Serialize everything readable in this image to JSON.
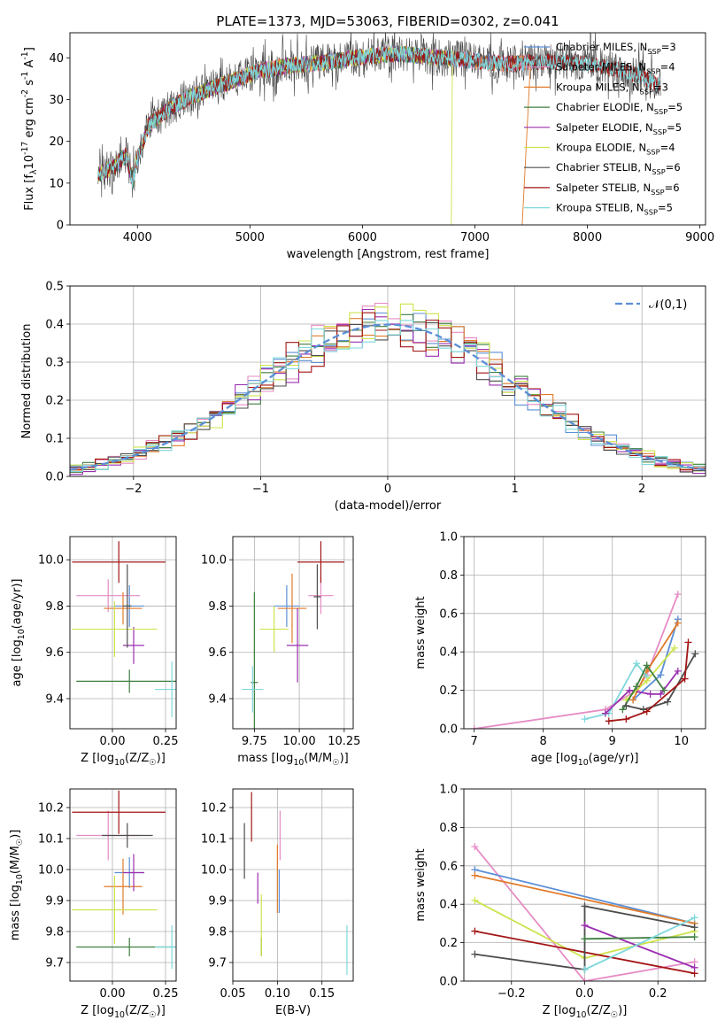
{
  "colors": {
    "Chabrier MILES": "#5b8fd6",
    "Salpeter MILES": "#e68cc4",
    "Kroupa MILES": "#e07b2a",
    "Chabrier ELODIE": "#3f7f3f",
    "Salpeter ELODIE": "#9b2fb0",
    "Kroupa ELODIE": "#cde34c",
    "Chabrier STELIB": "#4d4d4d",
    "Salpeter STELIB": "#a31515",
    "Kroupa STELIB": "#7fd8dc",
    "normal_curve": "#5b8fd6"
  },
  "chart_data": [
    {
      "id": "spectrum",
      "type": "line",
      "title": "PLATE=1373, MJD=53063, FIBERID=0302, z=0.041",
      "xlabel": "wavelength [Angstrom, rest frame]",
      "ylabel": "Flux [f$_\\lambda$10$^{-17}$ erg cm$^{-2}$ s$^{-1}$ A$^{-1}$]",
      "xlim": [
        3400,
        9050
      ],
      "ylim": [
        0,
        46
      ],
      "xticks": [
        4000,
        5000,
        6000,
        7000,
        8000,
        9000
      ],
      "yticks": [
        0,
        10,
        20,
        30,
        40
      ],
      "grid": false,
      "legend_loc": "right",
      "continuum": [
        [
          3650,
          12
        ],
        [
          3800,
          14
        ],
        [
          3900,
          17
        ],
        [
          3960,
          10
        ],
        [
          4000,
          16
        ],
        [
          4100,
          24
        ],
        [
          4300,
          28
        ],
        [
          4500,
          31
        ],
        [
          4700,
          33
        ],
        [
          4900,
          35
        ],
        [
          5100,
          37
        ],
        [
          5300,
          38
        ],
        [
          5500,
          38.5
        ],
        [
          5700,
          39
        ],
        [
          5900,
          40
        ],
        [
          6100,
          40.5
        ],
        [
          6300,
          41
        ],
        [
          6500,
          40.5
        ],
        [
          6700,
          40
        ],
        [
          6900,
          39.5
        ],
        [
          7100,
          39
        ],
        [
          7300,
          38.5
        ],
        [
          7500,
          39
        ],
        [
          7700,
          39
        ],
        [
          7900,
          39
        ],
        [
          8100,
          38
        ],
        [
          8300,
          37
        ],
        [
          8500,
          35.5
        ],
        [
          8650,
          33
        ]
      ],
      "series": [
        {
          "name": "Chabrier MILES",
          "label": "Chabrier MILES, N$_{SSP}$=3",
          "x_range": [
            3650,
            7500
          ]
        },
        {
          "name": "Salpeter MILES",
          "label": "Salpeter MILES, N$_{SSP}$=4",
          "x_range": [
            3650,
            7500
          ]
        },
        {
          "name": "Kroupa MILES",
          "label": "Kroupa MILES, N$_{SSP}$=3",
          "x_range": [
            3650,
            7500
          ],
          "drop_at": 7420
        },
        {
          "name": "Chabrier ELODIE",
          "label": "Chabrier ELODIE, N$_{SSP}$=5",
          "x_range": [
            3650,
            6800
          ]
        },
        {
          "name": "Salpeter ELODIE",
          "label": "Salpeter ELODIE, N$_{SSP}$=5",
          "x_range": [
            3650,
            6800
          ]
        },
        {
          "name": "Kroupa ELODIE",
          "label": "Kroupa ELODIE, N$_{SSP}$=4",
          "x_range": [
            3650,
            6800
          ],
          "drop_at": 6790
        },
        {
          "name": "Chabrier STELIB",
          "label": "Chabrier STELIB, N$_{SSP}$=6",
          "x_range": [
            3650,
            8650
          ]
        },
        {
          "name": "Salpeter STELIB",
          "label": "Salpeter STELIB, N$_{SSP}$=6",
          "x_range": [
            3650,
            8650
          ]
        },
        {
          "name": "Kroupa STELIB",
          "label": "Kroupa STELIB, N$_{SSP}$=5",
          "x_range": [
            3650,
            8650
          ]
        }
      ]
    },
    {
      "id": "residuals",
      "type": "histogram",
      "xlabel": "(data-model)/error",
      "ylabel": "Normed distribution",
      "xlim": [
        -2.5,
        2.5
      ],
      "ylim": [
        0,
        0.5
      ],
      "xticks": [
        -2,
        -1,
        0,
        1,
        2
      ],
      "yticks": [
        0.0,
        0.1,
        0.2,
        0.3,
        0.4,
        0.5
      ],
      "grid": true,
      "legend_loc": "top-right",
      "bin_width": 0.1,
      "normal_label": "$\\mathcal{N}(0,1)$",
      "series": [
        "Chabrier MILES",
        "Salpeter MILES",
        "Kroupa MILES",
        "Chabrier ELODIE",
        "Salpeter ELODIE",
        "Kroupa ELODIE",
        "Chabrier STELIB",
        "Salpeter STELIB",
        "Kroupa STELIB"
      ]
    },
    {
      "id": "z_age",
      "type": "errorbar",
      "xlabel": "Z [log$_{10}$($Z/Z_\\odot$)]",
      "ylabel": "age  [log$_{10}$($age/yr$)]",
      "xlim": [
        -0.2,
        0.3
      ],
      "ylim": [
        9.27,
        10.1
      ],
      "xticks": [
        0.0,
        0.25
      ],
      "yticks": [
        9.4,
        9.6,
        9.8,
        10.0
      ],
      "grid": true,
      "points": [
        {
          "series": "Chabrier MILES",
          "x": 0.08,
          "y": 9.8,
          "xerr": 0.07,
          "yerr": 0.09
        },
        {
          "series": "Salpeter MILES",
          "x": -0.02,
          "y": 9.845,
          "xerr": 0.15,
          "yerr": 0.07
        },
        {
          "series": "Kroupa MILES",
          "x": 0.05,
          "y": 9.79,
          "xerr": 0.09,
          "yerr": 0.07
        },
        {
          "series": "Chabrier ELODIE",
          "x": 0.08,
          "y": 9.475,
          "xerr": 0.25,
          "yerr": 0.05
        },
        {
          "series": "Salpeter ELODIE",
          "x": 0.1,
          "y": 9.63,
          "xerr": 0.05,
          "yerr": 0.08
        },
        {
          "series": "Kroupa ELODIE",
          "x": 0.01,
          "y": 9.7,
          "xerr": 0.2,
          "yerr": 0.12
        },
        {
          "series": "Chabrier STELIB",
          "x": 0.07,
          "y": 9.8,
          "xerr": 0.02,
          "yerr": 0.18
        },
        {
          "series": "Salpeter STELIB",
          "x": 0.03,
          "y": 9.99,
          "xerr": 0.22,
          "yerr": 0.09
        },
        {
          "series": "Kroupa STELIB",
          "x": 0.28,
          "y": 9.44,
          "xerr": 0.08,
          "yerr": 0.12
        }
      ]
    },
    {
      "id": "mass_age",
      "type": "errorbar",
      "xlabel": "mass [log$_{10}$($M/M_\\odot$)]",
      "ylabel": "",
      "xlim": [
        9.63,
        10.3
      ],
      "ylim": [
        9.27,
        10.1
      ],
      "xticks": [
        9.75,
        10.0,
        10.25
      ],
      "yticks": [
        9.4,
        9.6,
        9.8,
        10.0
      ],
      "grid": true,
      "points": [
        {
          "series": "Chabrier MILES",
          "x": 9.93,
          "y": 9.8,
          "xerr": 0.07,
          "yerr": 0.09
        },
        {
          "series": "Salpeter MILES",
          "x": 10.12,
          "y": 9.845,
          "xerr": 0.07,
          "yerr": 0.08
        },
        {
          "series": "Kroupa MILES",
          "x": 9.96,
          "y": 9.79,
          "xerr": 0.08,
          "yerr": 0.15
        },
        {
          "series": "Chabrier ELODIE",
          "x": 9.75,
          "y": 9.47,
          "xerr": 0.02,
          "yerr": 0.39
        },
        {
          "series": "Salpeter ELODIE",
          "x": 9.99,
          "y": 9.63,
          "xerr": 0.06,
          "yerr": 0.16
        },
        {
          "series": "Kroupa ELODIE",
          "x": 9.86,
          "y": 9.7,
          "xerr": 0.08,
          "yerr": 0.1
        },
        {
          "series": "Chabrier STELIB",
          "x": 10.1,
          "y": 9.84,
          "xerr": 0.02,
          "yerr": 0.14
        },
        {
          "series": "Salpeter STELIB",
          "x": 10.12,
          "y": 9.99,
          "xerr": 0.13,
          "yerr": 0.09
        },
        {
          "series": "Kroupa STELIB",
          "x": 9.74,
          "y": 9.44,
          "xerr": 0.06,
          "yerr": 0.1
        }
      ]
    },
    {
      "id": "age_weight",
      "type": "line",
      "xlabel": "age  [log$_{10}$($age/yr$)]",
      "ylabel": "mass weight",
      "xlim": [
        6.85,
        10.35
      ],
      "ylim": [
        0,
        1
      ],
      "xticks": [
        7,
        8,
        9,
        10
      ],
      "yticks": [
        0.0,
        0.2,
        0.4,
        0.6,
        0.8,
        1.0
      ],
      "grid": true,
      "series": [
        {
          "name": "Salpeter MILES",
          "x": [
            7.0,
            8.9,
            9.35,
            9.5,
            9.95
          ],
          "y": [
            0.0,
            0.1,
            0.2,
            0.28,
            0.7
          ]
        },
        {
          "name": "Chabrier MILES",
          "x": [
            9.3,
            9.7,
            9.95
          ],
          "y": [
            0.15,
            0.28,
            0.57
          ]
        },
        {
          "name": "Kroupa MILES",
          "x": [
            9.3,
            9.5,
            9.95
          ],
          "y": [
            0.15,
            0.3,
            0.55
          ]
        },
        {
          "name": "Kroupa STELIB",
          "x": [
            8.6,
            8.95,
            9.35,
            9.5
          ],
          "y": [
            0.05,
            0.08,
            0.34,
            0.27
          ]
        },
        {
          "name": "Salpeter ELODIE",
          "x": [
            8.9,
            9.25,
            9.55,
            9.7,
            9.95
          ],
          "y": [
            0.08,
            0.2,
            0.18,
            0.18,
            0.3
          ]
        },
        {
          "name": "Kroupa ELODIE",
          "x": [
            9.2,
            9.5,
            9.9
          ],
          "y": [
            0.15,
            0.25,
            0.42
          ]
        },
        {
          "name": "Chabrier ELODIE",
          "x": [
            9.15,
            9.35,
            9.5,
            9.75
          ],
          "y": [
            0.1,
            0.22,
            0.33,
            0.2
          ]
        },
        {
          "name": "Chabrier STELIB",
          "x": [
            9.2,
            9.45,
            9.8,
            10.2
          ],
          "y": [
            0.12,
            0.1,
            0.14,
            0.39
          ]
        },
        {
          "name": "Salpeter STELIB",
          "x": [
            8.95,
            9.2,
            9.5,
            10.05,
            10.1
          ],
          "y": [
            0.04,
            0.05,
            0.09,
            0.26,
            0.45
          ]
        }
      ]
    },
    {
      "id": "z_mass",
      "type": "errorbar",
      "xlabel": "Z [log$_{10}$($Z/Z_\\odot$)]",
      "ylabel": "mass [log$_{10}$($M/M_\\odot$)]",
      "xlim": [
        -0.2,
        0.3
      ],
      "ylim": [
        9.64,
        10.26
      ],
      "xticks": [
        0.0,
        0.25
      ],
      "yticks": [
        9.7,
        9.8,
        9.9,
        10.0,
        10.1,
        10.2
      ],
      "grid": true,
      "points": [
        {
          "series": "Chabrier MILES",
          "x": 0.08,
          "y": 9.99,
          "xerr": 0.07,
          "yerr": 0.05
        },
        {
          "series": "Salpeter MILES",
          "x": -0.02,
          "y": 10.11,
          "xerr": 0.15,
          "yerr": 0.08
        },
        {
          "series": "Kroupa MILES",
          "x": 0.05,
          "y": 9.945,
          "xerr": 0.09,
          "yerr": 0.09
        },
        {
          "series": "Chabrier ELODIE",
          "x": 0.08,
          "y": 9.75,
          "xerr": 0.25,
          "yerr": 0.03
        },
        {
          "series": "Salpeter ELODIE",
          "x": 0.1,
          "y": 9.99,
          "xerr": 0.05,
          "yerr": 0.06
        },
        {
          "series": "Kroupa ELODIE",
          "x": 0.01,
          "y": 9.87,
          "xerr": 0.2,
          "yerr": 0.11
        },
        {
          "series": "Chabrier STELIB",
          "x": 0.07,
          "y": 10.11,
          "xerr": 0.12,
          "yerr": 0.04
        },
        {
          "series": "Salpeter STELIB",
          "x": 0.03,
          "y": 10.185,
          "xerr": 0.22,
          "yerr": 0.07
        },
        {
          "series": "Kroupa STELIB",
          "x": 0.28,
          "y": 9.75,
          "xerr": 0.08,
          "yerr": 0.07
        }
      ]
    },
    {
      "id": "ebv_mass",
      "type": "errorbar",
      "xlabel": "E(B-V)",
      "ylabel": "",
      "xlim": [
        0.05,
        0.185
      ],
      "ylim": [
        9.64,
        10.26
      ],
      "xticks": [
        0.05,
        0.1,
        0.15
      ],
      "yticks": [
        9.7,
        9.8,
        9.9,
        10.0,
        10.1,
        10.2
      ],
      "grid": true,
      "points": [
        {
          "series": "Chabrier MILES",
          "x": 0.102,
          "y": 9.93,
          "xerr": 0,
          "yerr": 0.07
        },
        {
          "series": "Salpeter MILES",
          "x": 0.103,
          "y": 10.11,
          "xerr": 0,
          "yerr": 0.08
        },
        {
          "series": "Kroupa MILES",
          "x": 0.1,
          "y": 9.97,
          "xerr": 0,
          "yerr": 0.11
        },
        {
          "series": "Chabrier ELODIE",
          "x": 0.082,
          "y": 9.75,
          "xerr": 0,
          "yerr": 0.03
        },
        {
          "series": "Salpeter ELODIE",
          "x": 0.078,
          "y": 9.94,
          "xerr": 0,
          "yerr": 0.05
        },
        {
          "series": "Kroupa ELODIE",
          "x": 0.082,
          "y": 9.82,
          "xerr": 0,
          "yerr": 0.1
        },
        {
          "series": "Chabrier STELIB",
          "x": 0.063,
          "y": 10.06,
          "xerr": 0,
          "yerr": 0.09
        },
        {
          "series": "Salpeter STELIB",
          "x": 0.071,
          "y": 10.17,
          "xerr": 0,
          "yerr": 0.08
        },
        {
          "series": "Kroupa STELIB",
          "x": 0.178,
          "y": 9.74,
          "xerr": 0,
          "yerr": 0.08
        }
      ]
    },
    {
      "id": "z_weight",
      "type": "line",
      "xlabel": "Z [log$_{10}$($Z/Z_\\odot$)]",
      "ylabel": "mass weight",
      "xlim": [
        -0.33,
        0.33
      ],
      "ylim": [
        0,
        1
      ],
      "xticks": [
        -0.2,
        0.0,
        0.2
      ],
      "yticks": [
        0.0,
        0.2,
        0.4,
        0.6,
        0.8,
        1.0
      ],
      "grid": true,
      "series": [
        {
          "name": "Salpeter MILES",
          "x": [
            -0.3,
            0.0,
            0.3
          ],
          "y": [
            0.7,
            0.0,
            0.1
          ]
        },
        {
          "name": "Chabrier MILES",
          "x": [
            -0.3,
            0.3
          ],
          "y": [
            0.58,
            0.3
          ]
        },
        {
          "name": "Kroupa MILES",
          "x": [
            -0.3,
            0.3
          ],
          "y": [
            0.55,
            0.3
          ]
        },
        {
          "name": "Kroupa ELODIE",
          "x": [
            -0.3,
            0.0,
            0.3
          ],
          "y": [
            0.42,
            0.12,
            0.26
          ]
        },
        {
          "name": "Salpeter STELIB",
          "x": [
            -0.3,
            0.3
          ],
          "y": [
            0.26,
            0.04
          ]
        },
        {
          "name": "Chabrier STELIB",
          "x": [
            -0.3,
            0.0,
            0.0,
            0.3
          ],
          "y": [
            0.14,
            0.06,
            0.39,
            0.28
          ]
        },
        {
          "name": "Salpeter ELODIE",
          "x": [
            0.0,
            0.3
          ],
          "y": [
            0.29,
            0.07
          ]
        },
        {
          "name": "Chabrier ELODIE",
          "x": [
            0.0,
            0.3
          ],
          "y": [
            0.22,
            0.23
          ]
        },
        {
          "name": "Kroupa STELIB",
          "x": [
            0.0,
            0.3
          ],
          "y": [
            0.06,
            0.33
          ]
        }
      ]
    }
  ]
}
